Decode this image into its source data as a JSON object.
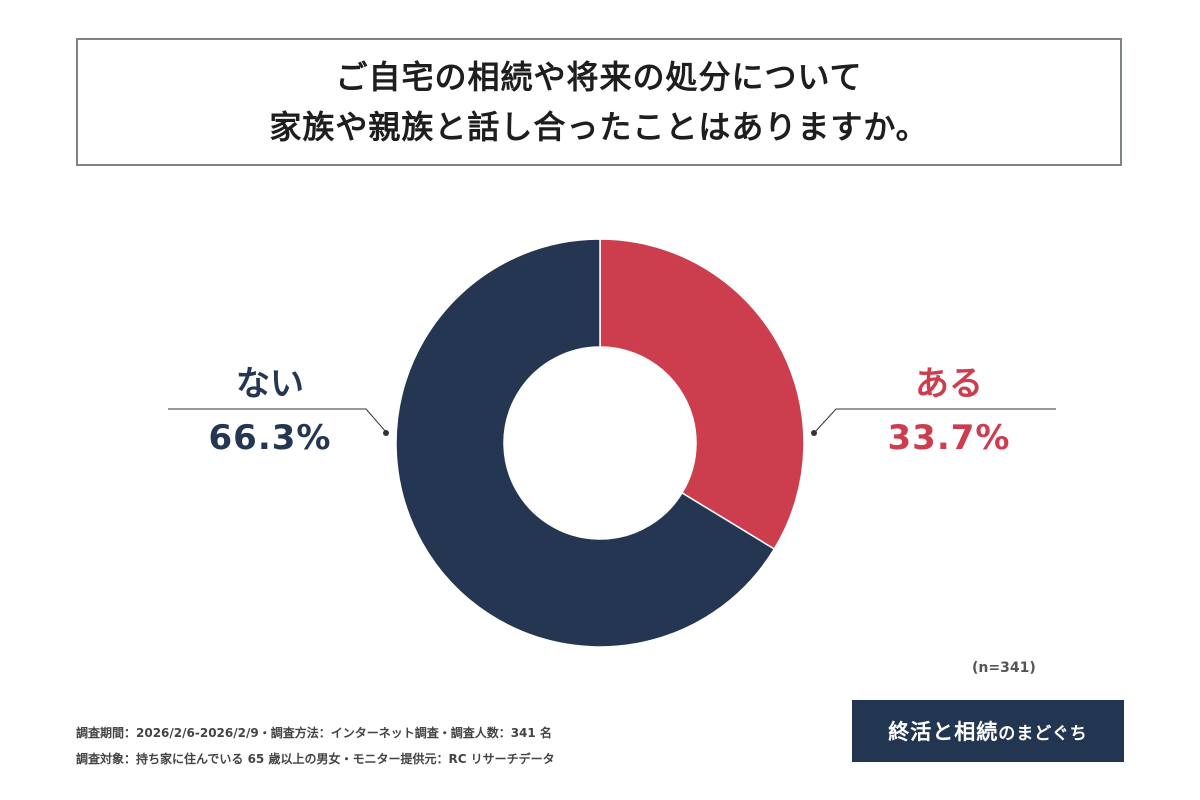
{
  "title": {
    "line1": "ご自宅の相続や将来の処分について",
    "line2": "家族や親族と話し合ったことはありますか。"
  },
  "colors": {
    "nai": "#243651",
    "aru": "#cc3d4e",
    "leader": "#333333"
  },
  "chart_data": {
    "type": "pie",
    "variant": "donut",
    "slices": [
      {
        "label": "ある",
        "value": 33.7,
        "value_label": "33.7%",
        "color": "#cc3d4e"
      },
      {
        "label": "ない",
        "value": 66.3,
        "value_label": "66.3%",
        "color": "#243651"
      }
    ],
    "start": "12 o'clock",
    "direction": "clockwise",
    "sample_size": "(n=341)"
  },
  "footnotes": {
    "line1": "調査期間：2026/2/6-2026/2/9・調査方法：インターネット調査・調査人数：341 名",
    "line2": "調査対象：持ち家に住んでいる 65 歳以上の男女・モニター提供元：RC リサーチデータ"
  },
  "brand": {
    "part1": "終活と相続",
    "part2": "のまどぐち"
  }
}
